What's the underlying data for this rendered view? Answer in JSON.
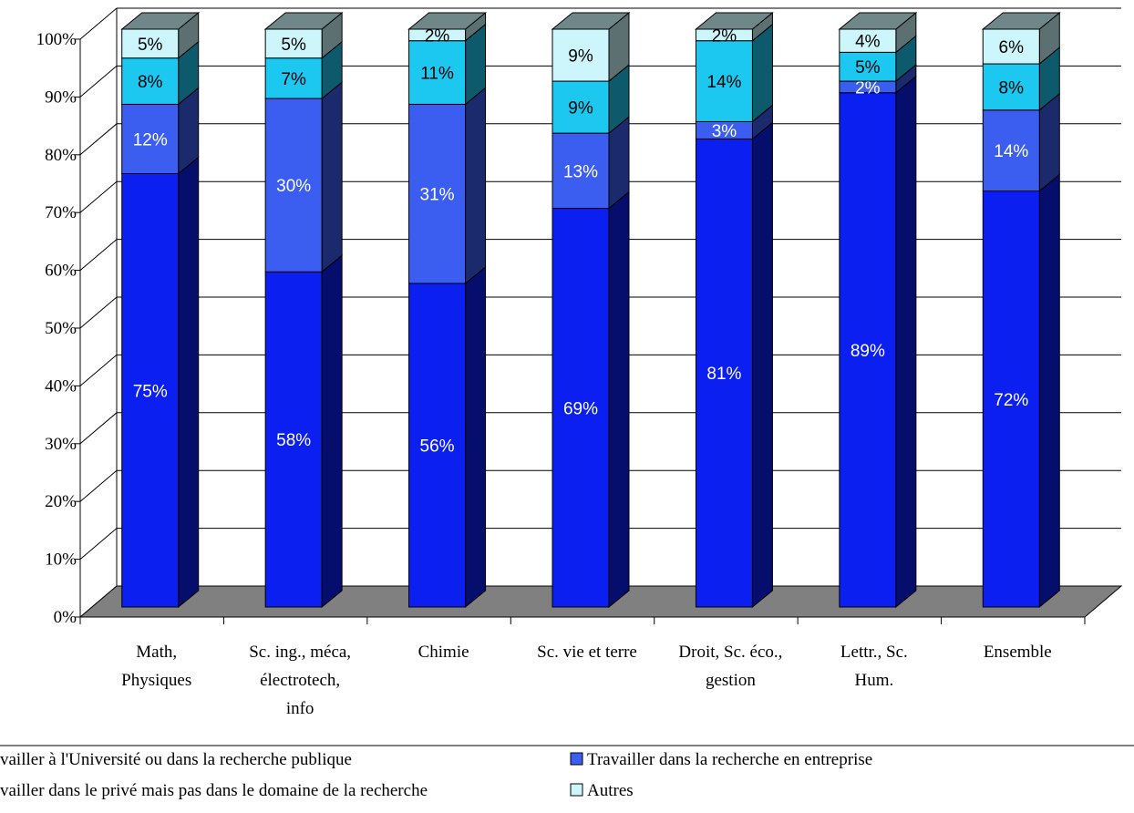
{
  "chart_data": {
    "type": "bar",
    "stacked": true,
    "three_d": true,
    "categories": [
      [
        "Math,",
        "Physiques"
      ],
      [
        "Sc. ing., méca,",
        "électrotech,",
        "info"
      ],
      [
        "Chimie"
      ],
      [
        "Sc. vie et terre"
      ],
      [
        "Droit, Sc. éco.,",
        "gestion"
      ],
      [
        "Lettr., Sc.",
        "Hum."
      ],
      [
        "Ensemble"
      ]
    ],
    "series": [
      {
        "name": "vailler à l'Université ou dans la recherche publique",
        "color": "#0a1ff0",
        "label_color": "#ffffff",
        "values": [
          75,
          58,
          56,
          69,
          81,
          89,
          72
        ]
      },
      {
        "name": "Travailler dans la recherche en entreprise",
        "color": "#3b5ef0",
        "label_color": "#ffffff",
        "values": [
          12,
          30,
          31,
          13,
          3,
          2,
          14
        ]
      },
      {
        "name": "vailler dans le privé mais pas dans le domaine de la recherche",
        "color": "#1cc8f0",
        "label_color": "#000000",
        "values": [
          8,
          7,
          11,
          9,
          14,
          5,
          8
        ]
      },
      {
        "name": "Autres",
        "color": "#ccf6fb",
        "label_color": "#000000",
        "values": [
          5,
          5,
          2,
          9,
          2,
          4,
          6
        ]
      }
    ],
    "labels": [
      [
        "75%",
        "12%",
        "8%",
        "5%"
      ],
      [
        "58%",
        "30%",
        "7%",
        "5%"
      ],
      [
        "56%",
        "31%",
        "11%",
        "2%"
      ],
      [
        "69%",
        "13%",
        "9%",
        "9%"
      ],
      [
        "81%",
        "3%",
        "14%",
        "2%"
      ],
      [
        "89%",
        "2%",
        "5%",
        "4%"
      ],
      [
        "72%",
        "14%",
        "8%",
        "6%"
      ]
    ],
    "yticks": [
      "0%",
      "10%",
      "20%",
      "30%",
      "40%",
      "50%",
      "60%",
      "70%",
      "80%",
      "90%",
      "100%"
    ],
    "ylim": [
      0,
      100
    ],
    "grid": true,
    "floor_color": "#808080",
    "legend_position": "bottom",
    "title": "",
    "xlabel": "",
    "ylabel": ""
  }
}
